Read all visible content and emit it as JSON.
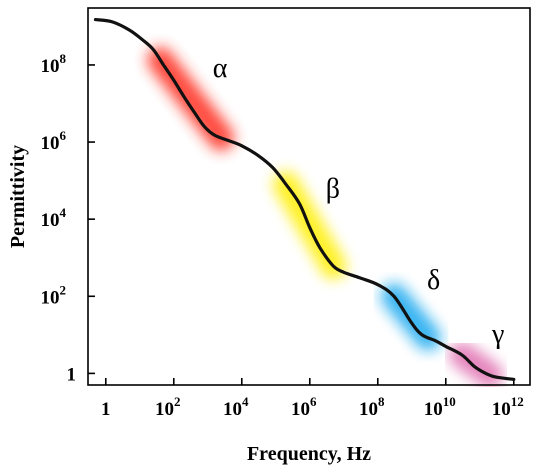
{
  "chart_data": {
    "type": "line",
    "title": "",
    "xlabel": "Frequency, Hz",
    "ylabel": "Permittivity",
    "x_scale": "log",
    "y_scale": "log",
    "xlim": [
      0.3,
      3000000000000.0
    ],
    "ylim": [
      0.5,
      3000000000.0
    ],
    "grid": false,
    "legend": "none",
    "x_ticks": [
      {
        "value": 1,
        "base": "1",
        "exp": ""
      },
      {
        "value": 100,
        "base": "10",
        "exp": "2"
      },
      {
        "value": 10000,
        "base": "10",
        "exp": "4"
      },
      {
        "value": 1000000,
        "base": "10",
        "exp": "6"
      },
      {
        "value": 100000000,
        "base": "10",
        "exp": "8"
      },
      {
        "value": 10000000000,
        "base": "10",
        "exp": "10"
      },
      {
        "value": 1000000000000,
        "base": "10",
        "exp": "12"
      }
    ],
    "y_ticks": [
      {
        "value": 1,
        "base": "1",
        "exp": ""
      },
      {
        "value": 100,
        "base": "10",
        "exp": "2"
      },
      {
        "value": 10000,
        "base": "10",
        "exp": "4"
      },
      {
        "value": 1000000,
        "base": "10",
        "exp": "6"
      },
      {
        "value": 100000000,
        "base": "10",
        "exp": "8"
      }
    ],
    "series": [
      {
        "x": [
          0.5,
          1.6,
          5,
          12,
          25,
          50,
          100,
          200,
          400,
          800,
          1600,
          4000,
          10000,
          30000,
          80000,
          200000,
          500000,
          1000000,
          2000000,
          5000000,
          10000000,
          30000000,
          100000000,
          300000000,
          1000000000,
          2000000000,
          5000000000,
          10000000000,
          30000000000,
          70000000000,
          150000000000,
          300000000000,
          1000000000000
        ],
        "y": [
          1500000000,
          1300000000,
          800000000,
          450000000,
          250000000,
          100000000,
          40000000,
          15000000,
          6000000,
          2500000,
          1500000,
          1100000,
          800000,
          450000,
          220000,
          80000,
          25000,
          6000,
          1800,
          600,
          420,
          300,
          200,
          100,
          20,
          10,
          7,
          5,
          3,
          1.5,
          1,
          0.8,
          0.7
        ]
      }
    ],
    "regions": [
      {
        "label": "α",
        "x_from": 40,
        "x_to": 2500,
        "color": "#ff2a1a"
      },
      {
        "label": "β",
        "x_from": 200000,
        "x_to": 5000000,
        "color": "#ffee00"
      },
      {
        "label": "δ",
        "x_from": 300000000,
        "x_to": 3000000000,
        "color": "#19a7ef"
      },
      {
        "label": "γ",
        "x_from": 30000000000,
        "x_to": 200000000000,
        "color": "#e070b0"
      }
    ]
  }
}
